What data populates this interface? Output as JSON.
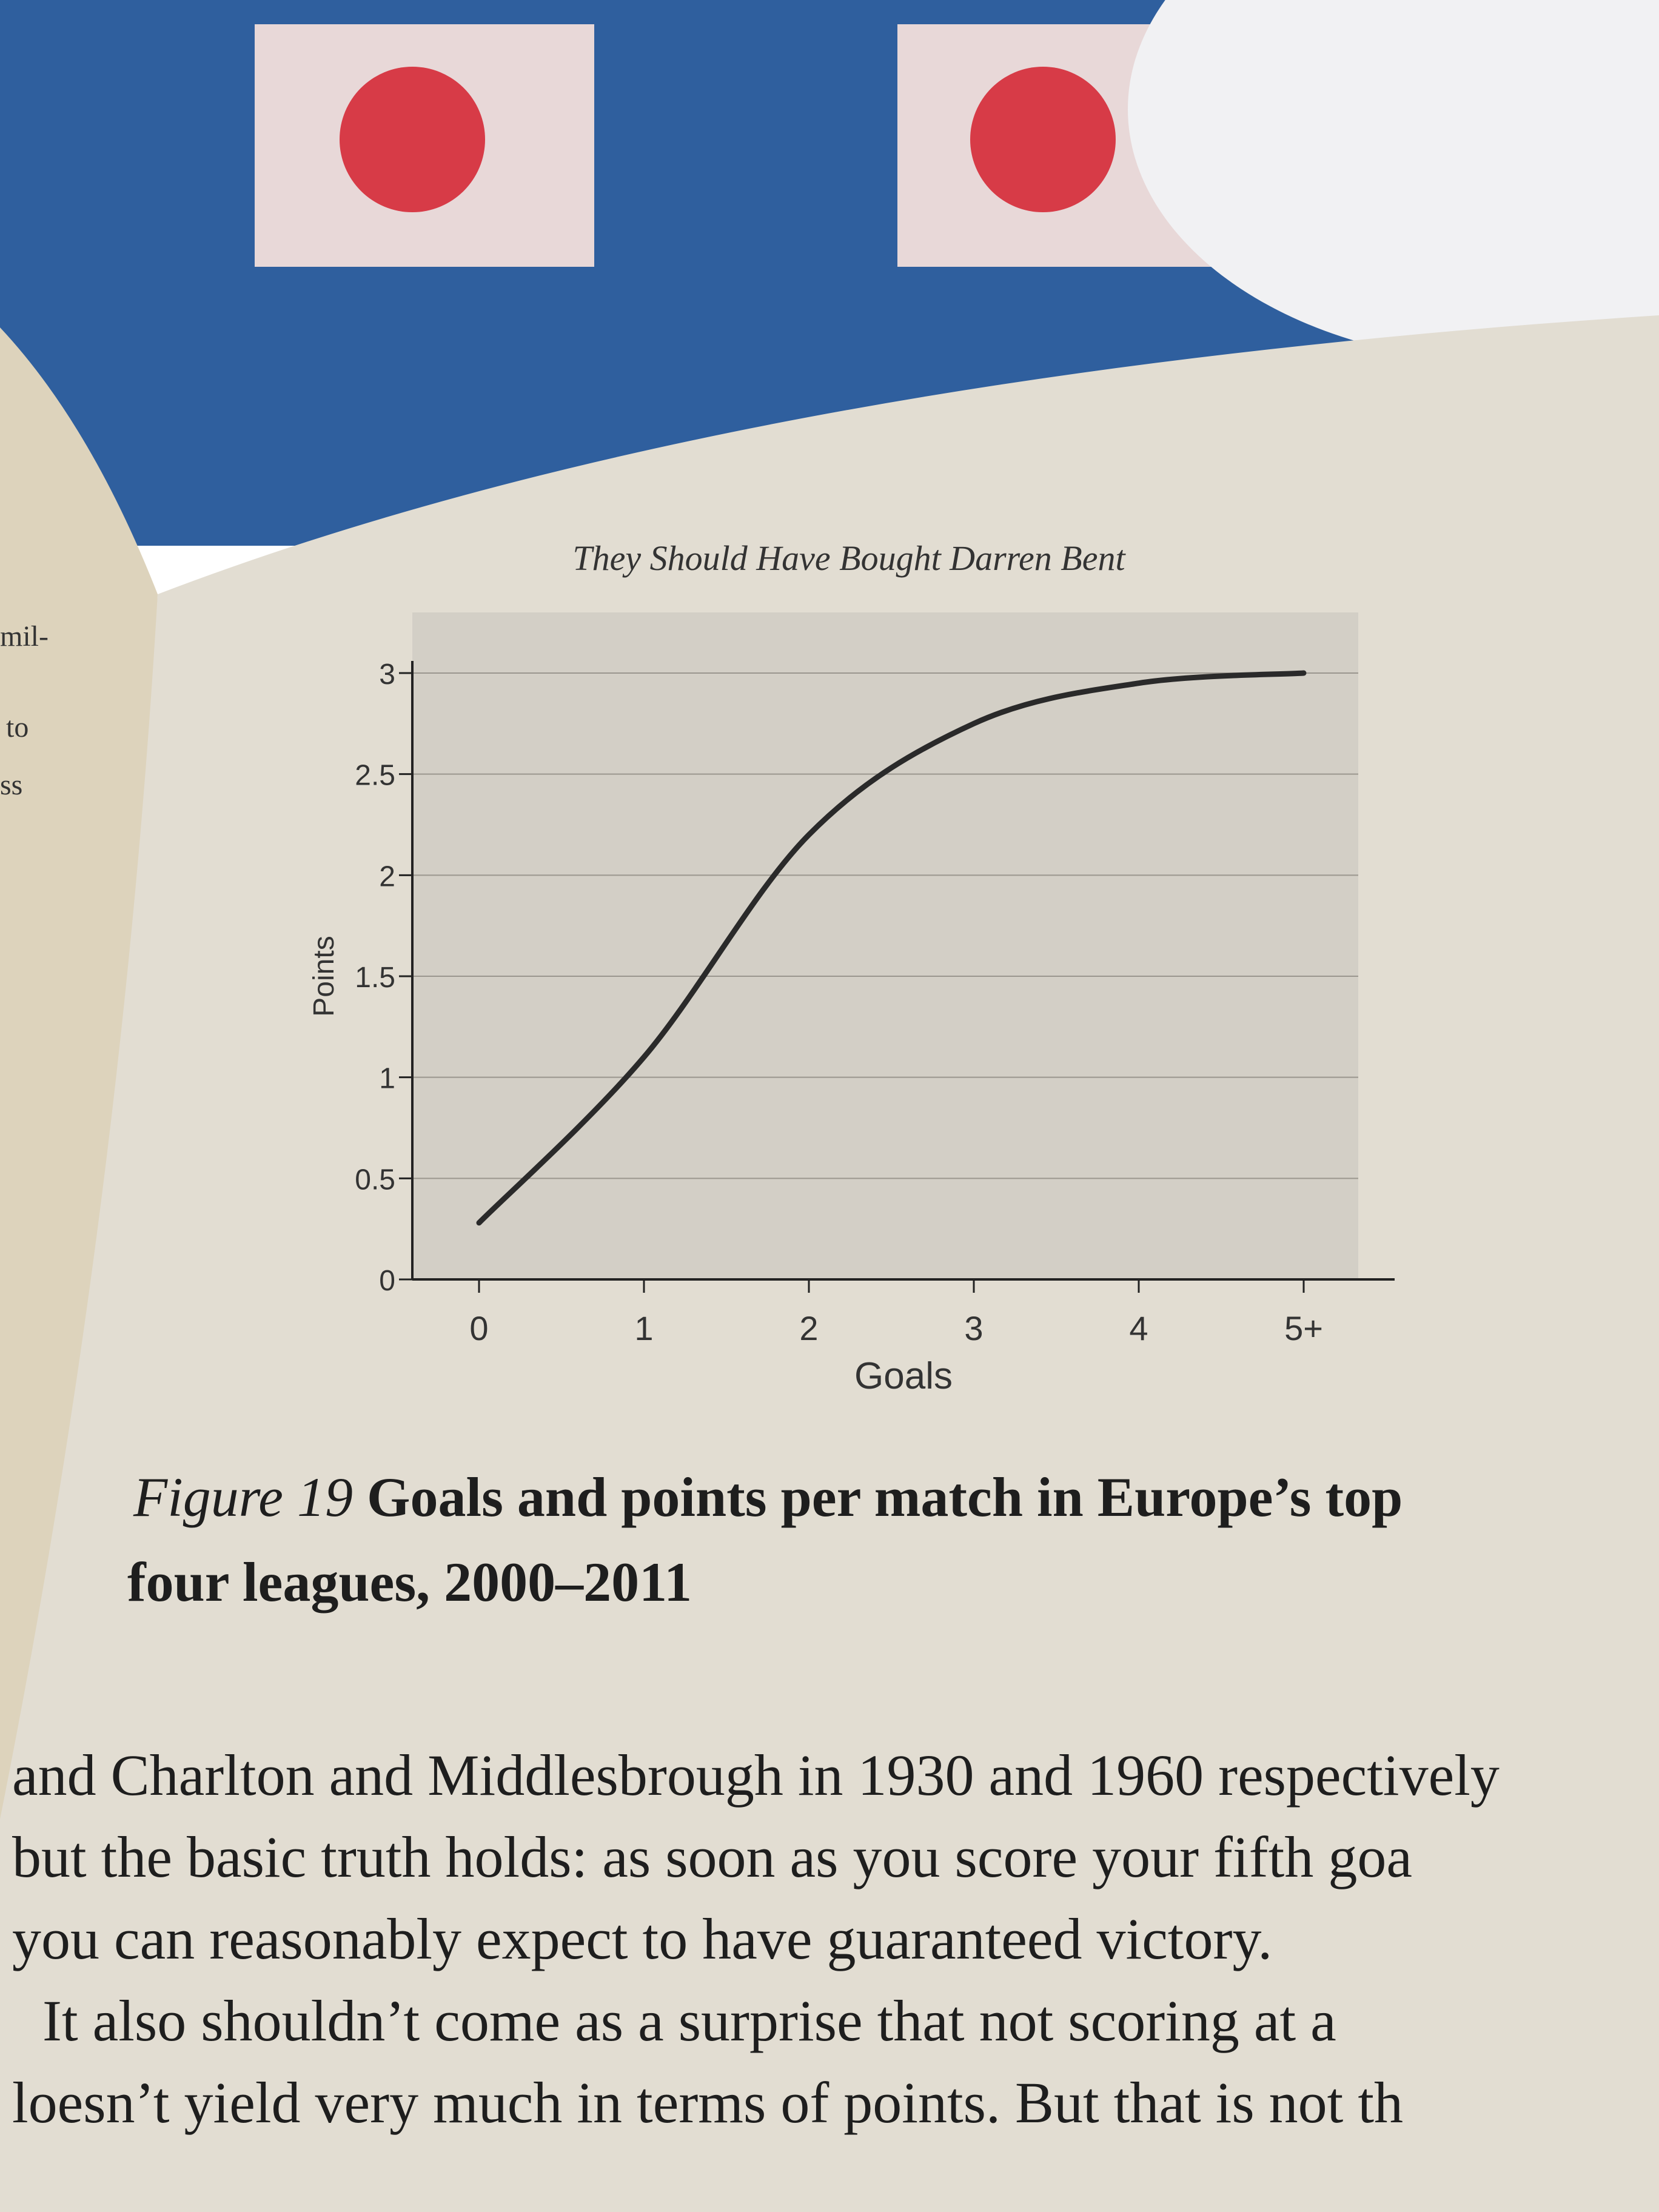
{
  "left_page": [
    "mil-",
    "to",
    "ss"
  ],
  "running_head": "They Should Have Bought Darren Bent",
  "chart_data": {
    "type": "line",
    "x_label": "Goals",
    "y_label": "Points",
    "categories": [
      "0",
      "1",
      "2",
      "3",
      "4",
      "5+"
    ],
    "series": [
      {
        "color": "#2a2a2a",
        "values": [
          0.28,
          1.1,
          2.2,
          2.75,
          2.95,
          3.0
        ]
      }
    ],
    "ylim": [
      0,
      3
    ],
    "yticks": [
      0,
      0.5,
      1,
      1.5,
      2,
      2.5,
      3
    ],
    "grid": true
  },
  "caption": {
    "label": "Figure 19",
    "text": "Goals and points per match in Europe’s top",
    "text2": "four leagues, 2000–2011"
  },
  "body": [
    "and Charlton and Middlesbrough in 1930 and 1960 respectively",
    "but the basic truth holds: as soon as you score your fifth goa",
    "you can reasonably expect to have guaranteed victory.",
    "It also shouldn’t come as a surprise that not scoring at a",
    "loesn’t yield very much in terms of points. But that is not th"
  ]
}
